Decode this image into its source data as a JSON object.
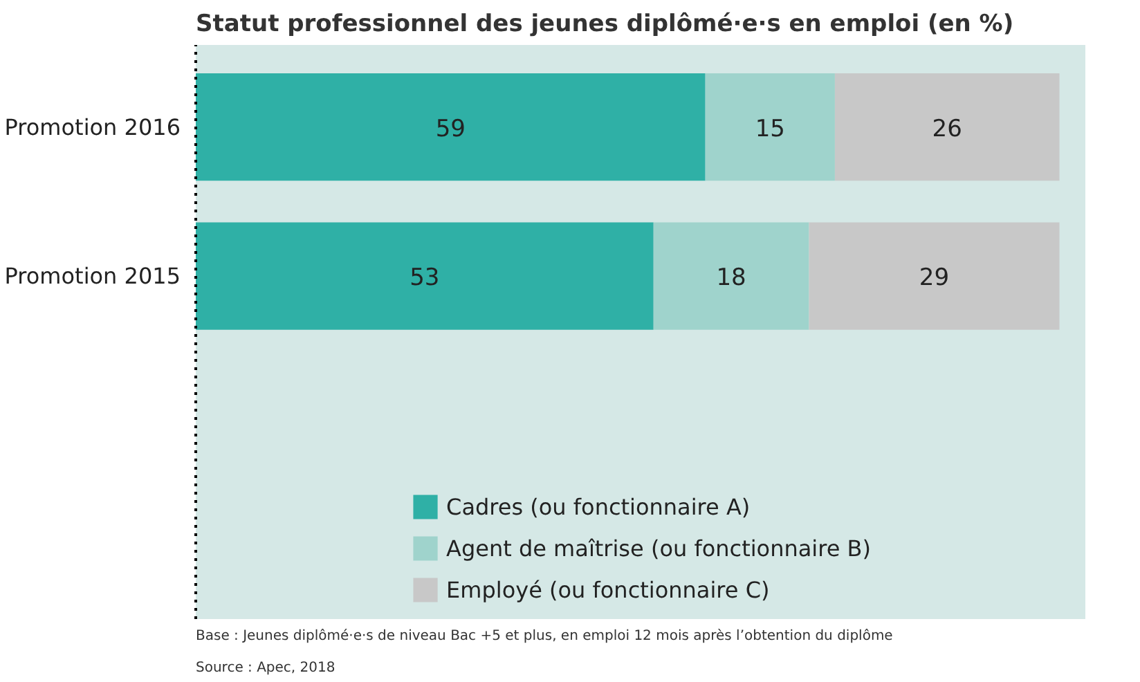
{
  "chart_data": {
    "type": "bar",
    "orientation": "horizontal",
    "stacked": true,
    "title": "Statut professionnel des jeunes diplômé·e·s en emploi (en %)",
    "categories": [
      "Promotion 2016",
      "Promotion 2015"
    ],
    "series": [
      {
        "name": "Cadres (ou fonctionnaire A)",
        "color": "#2fb0a6",
        "values": [
          59,
          53
        ]
      },
      {
        "name": "Agent de maîtrise (ou fonctionnaire B)",
        "color": "#9fd3cc",
        "values": [
          15,
          18
        ]
      },
      {
        "name": "Employé (ou fonctionnaire C)",
        "color": "#c8c8c8",
        "values": [
          26,
          29
        ]
      }
    ],
    "data_labels": true,
    "legend": "bottom",
    "grid": false,
    "annotations": [
      "Base : Jeunes diplômé·e·s de niveau Bac +5 et plus, en emploi 12 mois après l’obtention du diplôme",
      "Source : Apec, 2018"
    ]
  }
}
